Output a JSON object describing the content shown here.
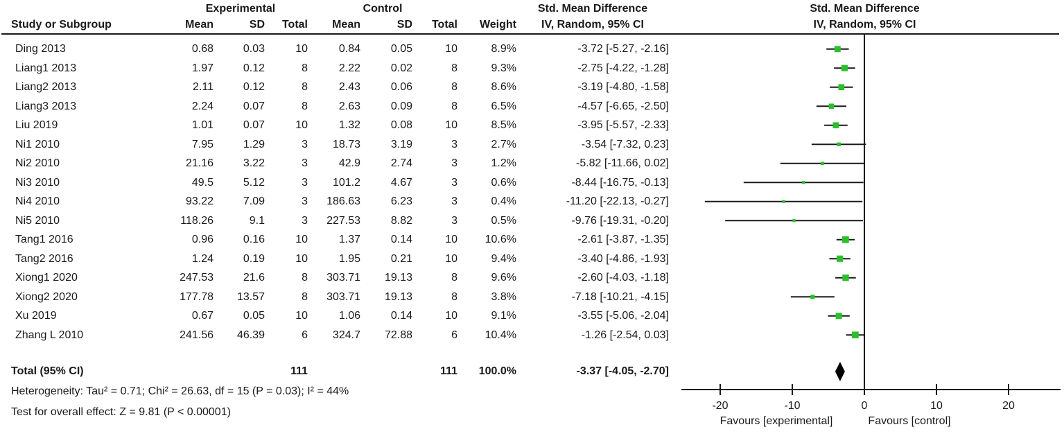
{
  "header": {
    "group_experimental": "Experimental",
    "group_control": "Control",
    "group_smd_left": "Std. Mean Difference",
    "group_smd_right": "Std. Mean Difference",
    "col_study": "Study or Subgroup",
    "col_mean_exp": "Mean",
    "col_sd_exp": "SD",
    "col_total_exp": "Total",
    "col_mean_ctl": "Mean",
    "col_sd_ctl": "SD",
    "col_total_ctl": "Total",
    "col_weight": "Weight",
    "col_ci_left": "IV, Random, 95% CI",
    "col_ci_right": "IV, Random, 95% CI"
  },
  "colors": {
    "square_green": "#2BC02B",
    "line_black": "#1a1a1a",
    "diamond_black": "#000000"
  },
  "chart_data": {
    "type": "forest",
    "effect_measure": "Std. Mean Difference",
    "method": "IV, Random, 95% CI",
    "studies": [
      {
        "name": "Ding 2013",
        "exp_mean": "0.68",
        "exp_sd": "0.03",
        "exp_total": "10",
        "ctl_mean": "0.84",
        "ctl_sd": "0.05",
        "ctl_total": "10",
        "weight": "8.9%",
        "weight_pct": 8.9,
        "ci_text": "-3.72 [-5.27, -2.16]",
        "effect": -3.72,
        "ci_low": -5.27,
        "ci_high": -2.16
      },
      {
        "name": "Liang1 2013",
        "exp_mean": "1.97",
        "exp_sd": "0.12",
        "exp_total": "8",
        "ctl_mean": "2.22",
        "ctl_sd": "0.02",
        "ctl_total": "8",
        "weight": "9.3%",
        "weight_pct": 9.3,
        "ci_text": "-2.75 [-4.22, -1.28]",
        "effect": -2.75,
        "ci_low": -4.22,
        "ci_high": -1.28
      },
      {
        "name": "Liang2 2013",
        "exp_mean": "2.11",
        "exp_sd": "0.12",
        "exp_total": "8",
        "ctl_mean": "2.43",
        "ctl_sd": "0.06",
        "ctl_total": "8",
        "weight": "8.6%",
        "weight_pct": 8.6,
        "ci_text": "-3.19 [-4.80, -1.58]",
        "effect": -3.19,
        "ci_low": -4.8,
        "ci_high": -1.58
      },
      {
        "name": "Liang3 2013",
        "exp_mean": "2.24",
        "exp_sd": "0.07",
        "exp_total": "8",
        "ctl_mean": "2.63",
        "ctl_sd": "0.09",
        "ctl_total": "8",
        "weight": "6.5%",
        "weight_pct": 6.5,
        "ci_text": "-4.57 [-6.65, -2.50]",
        "effect": -4.57,
        "ci_low": -6.65,
        "ci_high": -2.5
      },
      {
        "name": "Liu 2019",
        "exp_mean": "1.01",
        "exp_sd": "0.07",
        "exp_total": "10",
        "ctl_mean": "1.32",
        "ctl_sd": "0.08",
        "ctl_total": "10",
        "weight": "8.5%",
        "weight_pct": 8.5,
        "ci_text": "-3.95 [-5.57, -2.33]",
        "effect": -3.95,
        "ci_low": -5.57,
        "ci_high": -2.33
      },
      {
        "name": "Ni1 2010",
        "exp_mean": "7.95",
        "exp_sd": "1.29",
        "exp_total": "3",
        "ctl_mean": "18.73",
        "ctl_sd": "3.19",
        "ctl_total": "3",
        "weight": "2.7%",
        "weight_pct": 2.7,
        "ci_text": "-3.54 [-7.32, 0.23]",
        "effect": -3.54,
        "ci_low": -7.32,
        "ci_high": 0.23
      },
      {
        "name": "Ni2 2010",
        "exp_mean": "21.16",
        "exp_sd": "3.22",
        "exp_total": "3",
        "ctl_mean": "42.9",
        "ctl_sd": "2.74",
        "ctl_total": "3",
        "weight": "1.2%",
        "weight_pct": 1.2,
        "ci_text": "-5.82 [-11.66, 0.02]",
        "effect": -5.82,
        "ci_low": -11.66,
        "ci_high": 0.02
      },
      {
        "name": "Ni3 2010",
        "exp_mean": "49.5",
        "exp_sd": "5.12",
        "exp_total": "3",
        "ctl_mean": "101.2",
        "ctl_sd": "4.67",
        "ctl_total": "3",
        "weight": "0.6%",
        "weight_pct": 0.6,
        "ci_text": "-8.44 [-16.75, -0.13]",
        "effect": -8.44,
        "ci_low": -16.75,
        "ci_high": -0.13
      },
      {
        "name": "Ni4 2010",
        "exp_mean": "93.22",
        "exp_sd": "7.09",
        "exp_total": "3",
        "ctl_mean": "186.63",
        "ctl_sd": "6.23",
        "ctl_total": "3",
        "weight": "0.4%",
        "weight_pct": 0.4,
        "ci_text": "-11.20 [-22.13, -0.27]",
        "effect": -11.2,
        "ci_low": -22.13,
        "ci_high": -0.27
      },
      {
        "name": "Ni5 2010",
        "exp_mean": "118.26",
        "exp_sd": "9.1",
        "exp_total": "3",
        "ctl_mean": "227.53",
        "ctl_sd": "8.82",
        "ctl_total": "3",
        "weight": "0.5%",
        "weight_pct": 0.5,
        "ci_text": "-9.76 [-19.31, -0.20]",
        "effect": -9.76,
        "ci_low": -19.31,
        "ci_high": -0.2
      },
      {
        "name": "Tang1 2016",
        "exp_mean": "0.96",
        "exp_sd": "0.16",
        "exp_total": "10",
        "ctl_mean": "1.37",
        "ctl_sd": "0.14",
        "ctl_total": "10",
        "weight": "10.6%",
        "weight_pct": 10.6,
        "ci_text": "-2.61 [-3.87, -1.35]",
        "effect": -2.61,
        "ci_low": -3.87,
        "ci_high": -1.35
      },
      {
        "name": "Tang2 2016",
        "exp_mean": "1.24",
        "exp_sd": "0.19",
        "exp_total": "10",
        "ctl_mean": "1.95",
        "ctl_sd": "0.21",
        "ctl_total": "10",
        "weight": "9.4%",
        "weight_pct": 9.4,
        "ci_text": "-3.40 [-4.86, -1.93]",
        "effect": -3.4,
        "ci_low": -4.86,
        "ci_high": -1.93
      },
      {
        "name": "Xiong1 2020",
        "exp_mean": "247.53",
        "exp_sd": "21.6",
        "exp_total": "8",
        "ctl_mean": "303.71",
        "ctl_sd": "19.13",
        "ctl_total": "8",
        "weight": "9.6%",
        "weight_pct": 9.6,
        "ci_text": "-2.60 [-4.03, -1.18]",
        "effect": -2.6,
        "ci_low": -4.03,
        "ci_high": -1.18
      },
      {
        "name": "Xiong2 2020",
        "exp_mean": "177.78",
        "exp_sd": "13.57",
        "exp_total": "8",
        "ctl_mean": "303.71",
        "ctl_sd": "19.13",
        "ctl_total": "8",
        "weight": "3.8%",
        "weight_pct": 3.8,
        "ci_text": "-7.18 [-10.21, -4.15]",
        "effect": -7.18,
        "ci_low": -10.21,
        "ci_high": -4.15
      },
      {
        "name": "Xu 2019",
        "exp_mean": "0.67",
        "exp_sd": "0.05",
        "exp_total": "10",
        "ctl_mean": "1.06",
        "ctl_sd": "0.14",
        "ctl_total": "10",
        "weight": "9.1%",
        "weight_pct": 9.1,
        "ci_text": "-3.55 [-5.06, -2.04]",
        "effect": -3.55,
        "ci_low": -5.06,
        "ci_high": -2.04
      },
      {
        "name": "Zhang L 2010",
        "exp_mean": "241.56",
        "exp_sd": "46.39",
        "exp_total": "6",
        "ctl_mean": "324.7",
        "ctl_sd": "72.88",
        "ctl_total": "6",
        "weight": "10.4%",
        "weight_pct": 10.4,
        "ci_text": "-1.26 [-2.54, 0.03]",
        "effect": -1.26,
        "ci_low": -2.54,
        "ci_high": 0.03
      }
    ],
    "total": {
      "label": "Total (95% CI)",
      "exp_total": "111",
      "ctl_total": "111",
      "weight": "100.0%",
      "ci_text": "-3.37 [-4.05, -2.70]",
      "effect": -3.37,
      "ci_low": -4.05,
      "ci_high": -2.7
    },
    "footnotes": {
      "heterogeneity": "Heterogeneity: Tau² = 0.71; Chi² = 26.63, df = 15 (P = 0.03); I² = 44%",
      "overall_effect": "Test for overall effect: Z = 9.81 (P < 0.00001)"
    },
    "axis": {
      "ticks": [
        -20,
        -10,
        0,
        10,
        20
      ],
      "xlim": [
        -25.4,
        27.2
      ],
      "favours_left": "Favours [experimental]",
      "favours_right": "Favours [control]"
    }
  }
}
